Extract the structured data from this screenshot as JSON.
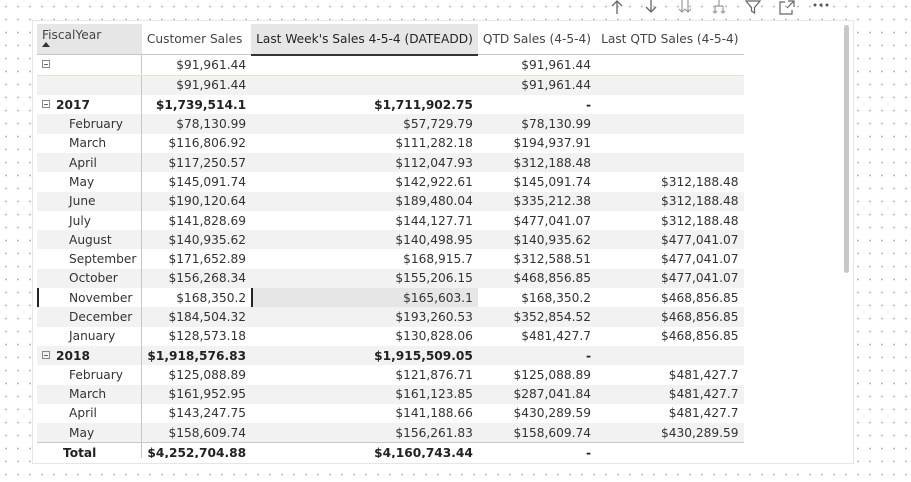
{
  "toolbar": {
    "icons": [
      "sort-arrow-up-icon",
      "sort-arrow-down-icon",
      "expand-all-down-icon",
      "expand-next-level-icon",
      "filter-icon",
      "focus-mode-icon",
      "more-options-icon"
    ]
  },
  "table": {
    "columns": [
      {
        "label": "FiscalYear"
      },
      {
        "label": "Customer Sales"
      },
      {
        "label": "Last Week's Sales 4-5-4 (DATEADD)"
      },
      {
        "label": "QTD Sales (4-5-4)"
      },
      {
        "label": "Last QTD Sales (4-5-4)"
      }
    ],
    "rows": [
      {
        "type": "blank-total",
        "label": "",
        "cs": "$91,961.44",
        "lw": "",
        "qtd": "$91,961.44",
        "lqtd": ""
      },
      {
        "type": "blank-month",
        "label": "",
        "cs": "$91,961.44",
        "lw": "",
        "qtd": "$91,961.44",
        "lqtd": ""
      },
      {
        "type": "year",
        "label": "2017",
        "cs": "$1,739,514.1",
        "lw": "$1,711,902.75",
        "qtd": "-",
        "lqtd": ""
      },
      {
        "type": "month",
        "label": "February",
        "cs": "$78,130.99",
        "lw": "$57,729.79",
        "qtd": "$78,130.99",
        "lqtd": ""
      },
      {
        "type": "month",
        "label": "March",
        "cs": "$116,806.92",
        "lw": "$111,282.18",
        "qtd": "$194,937.91",
        "lqtd": ""
      },
      {
        "type": "month",
        "label": "April",
        "cs": "$117,250.57",
        "lw": "$112,047.93",
        "qtd": "$312,188.48",
        "lqtd": ""
      },
      {
        "type": "month",
        "label": "May",
        "cs": "$145,091.74",
        "lw": "$142,922.61",
        "qtd": "$145,091.74",
        "lqtd": "$312,188.48"
      },
      {
        "type": "month",
        "label": "June",
        "cs": "$190,120.64",
        "lw": "$189,480.04",
        "qtd": "$335,212.38",
        "lqtd": "$312,188.48"
      },
      {
        "type": "month",
        "label": "July",
        "cs": "$141,828.69",
        "lw": "$144,127.71",
        "qtd": "$477,041.07",
        "lqtd": "$312,188.48"
      },
      {
        "type": "month",
        "label": "August",
        "cs": "$140,935.62",
        "lw": "$140,498.95",
        "qtd": "$140,935.62",
        "lqtd": "$477,041.07"
      },
      {
        "type": "month",
        "label": "September",
        "cs": "$171,652.89",
        "lw": "$168,915.7",
        "qtd": "$312,588.51",
        "lqtd": "$477,041.07"
      },
      {
        "type": "month",
        "label": "October",
        "cs": "$156,268.34",
        "lw": "$155,206.15",
        "qtd": "$468,856.85",
        "lqtd": "$477,041.07"
      },
      {
        "type": "month",
        "label": "November",
        "cs": "$168,350.2",
        "lw": "$165,603.1",
        "qtd": "$168,350.2",
        "lqtd": "$468,856.85",
        "selected": true
      },
      {
        "type": "month",
        "label": "December",
        "cs": "$184,504.32",
        "lw": "$193,260.53",
        "qtd": "$352,854.52",
        "lqtd": "$468,856.85"
      },
      {
        "type": "month",
        "label": "January",
        "cs": "$128,573.18",
        "lw": "$130,828.06",
        "qtd": "$481,427.7",
        "lqtd": "$468,856.85"
      },
      {
        "type": "year",
        "label": "2018",
        "cs": "$1,918,576.83",
        "lw": "$1,915,509.05",
        "qtd": "-",
        "lqtd": ""
      },
      {
        "type": "month",
        "label": "February",
        "cs": "$125,088.89",
        "lw": "$121,876.71",
        "qtd": "$125,088.89",
        "lqtd": "$481,427.7"
      },
      {
        "type": "month",
        "label": "March",
        "cs": "$161,952.95",
        "lw": "$161,123.85",
        "qtd": "$287,041.84",
        "lqtd": "$481,427.7"
      },
      {
        "type": "month",
        "label": "April",
        "cs": "$143,247.75",
        "lw": "$141,188.66",
        "qtd": "$430,289.59",
        "lqtd": "$481,427.7"
      },
      {
        "type": "month",
        "label": "May",
        "cs": "$158,609.74",
        "lw": "$156,261.83",
        "qtd": "$158,609.74",
        "lqtd": "$430,289.59"
      },
      {
        "type": "total",
        "label": "Total",
        "cs": "$4,252,704.88",
        "lw": "$4,160,743.44",
        "qtd": "-",
        "lqtd": ""
      }
    ]
  }
}
